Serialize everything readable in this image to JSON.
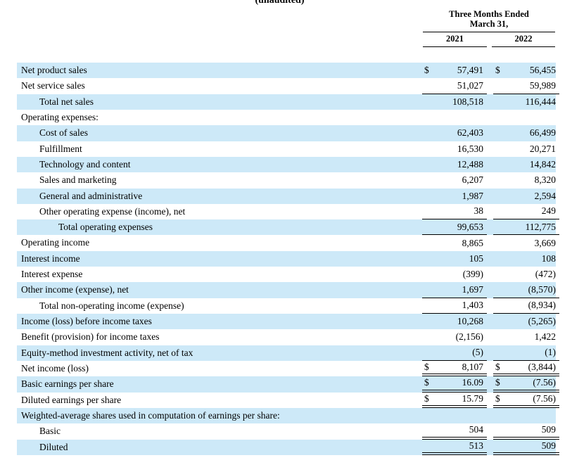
{
  "page": {
    "unaudited_label": "(unaudited)",
    "header": {
      "period_line1": "Three Months Ended",
      "period_line2": "March 31,",
      "col_2021": "2021",
      "col_2022": "2022"
    },
    "colors": {
      "row_highlight": "#cde9f8",
      "rule_line": "#000000",
      "text": "#000000",
      "background": "#ffffff"
    },
    "currency_symbol": "$",
    "rows": [
      {
        "label": "Net product sales",
        "indent": 0,
        "highlight": true,
        "dollar": true,
        "v2021": "57,491",
        "v2022": "56,455",
        "underline": "none"
      },
      {
        "label": "Net service sales",
        "indent": 0,
        "highlight": false,
        "dollar": false,
        "v2021": "51,027",
        "v2022": "59,989",
        "underline": "single"
      },
      {
        "label": "Total net sales",
        "indent": 1,
        "highlight": true,
        "dollar": false,
        "v2021": "108,518",
        "v2022": "116,444",
        "underline": "none"
      },
      {
        "label": "Operating expenses:",
        "indent": 0,
        "highlight": false,
        "dollar": false,
        "v2021": "",
        "v2022": "",
        "underline": "none"
      },
      {
        "label": "Cost of sales",
        "indent": 1,
        "highlight": true,
        "dollar": false,
        "v2021": "62,403",
        "v2022": "66,499",
        "underline": "none"
      },
      {
        "label": "Fulfillment",
        "indent": 1,
        "highlight": false,
        "dollar": false,
        "v2021": "16,530",
        "v2022": "20,271",
        "underline": "none"
      },
      {
        "label": "Technology and content",
        "indent": 1,
        "highlight": true,
        "dollar": false,
        "v2021": "12,488",
        "v2022": "14,842",
        "underline": "none"
      },
      {
        "label": "Sales and marketing",
        "indent": 1,
        "highlight": false,
        "dollar": false,
        "v2021": "6,207",
        "v2022": "8,320",
        "underline": "none"
      },
      {
        "label": "General and administrative",
        "indent": 1,
        "highlight": true,
        "dollar": false,
        "v2021": "1,987",
        "v2022": "2,594",
        "underline": "none"
      },
      {
        "label": "Other operating expense (income), net",
        "indent": 1,
        "highlight": false,
        "dollar": false,
        "v2021": "38",
        "v2022": "249",
        "underline": "single"
      },
      {
        "label": "Total operating expenses",
        "indent": 2,
        "highlight": true,
        "dollar": false,
        "v2021": "99,653",
        "v2022": "112,775",
        "underline": "single"
      },
      {
        "label": "Operating income",
        "indent": 0,
        "highlight": false,
        "dollar": false,
        "v2021": "8,865",
        "v2022": "3,669",
        "underline": "none"
      },
      {
        "label": "Interest income",
        "indent": 0,
        "highlight": true,
        "dollar": false,
        "v2021": "105",
        "v2022": "108",
        "underline": "none"
      },
      {
        "label": "Interest expense",
        "indent": 0,
        "highlight": false,
        "dollar": false,
        "v2021": "(399)",
        "v2022": "(472)",
        "underline": "none"
      },
      {
        "label": "Other income (expense), net",
        "indent": 0,
        "highlight": true,
        "dollar": false,
        "v2021": "1,697",
        "v2022": "(8,570)",
        "underline": "single"
      },
      {
        "label": "Total non-operating income (expense)",
        "indent": 1,
        "highlight": false,
        "dollar": false,
        "v2021": "1,403",
        "v2022": "(8,934)",
        "underline": "single"
      },
      {
        "label": "Income (loss) before income taxes",
        "indent": 0,
        "highlight": true,
        "dollar": false,
        "v2021": "10,268",
        "v2022": "(5,265)",
        "underline": "none"
      },
      {
        "label": "Benefit (provision) for income taxes",
        "indent": 0,
        "highlight": false,
        "dollar": false,
        "v2021": "(2,156)",
        "v2022": "1,422",
        "underline": "none"
      },
      {
        "label": "Equity-method investment activity, net of tax",
        "indent": 0,
        "highlight": true,
        "dollar": false,
        "v2021": "(5)",
        "v2022": "(1)",
        "underline": "single"
      },
      {
        "label": "Net income (loss)",
        "indent": 0,
        "highlight": false,
        "dollar": true,
        "v2021": "8,107",
        "v2022": "(3,844)",
        "underline": "double"
      },
      {
        "label": "Basic earnings per share",
        "indent": 0,
        "highlight": true,
        "dollar": true,
        "v2021": "16.09",
        "v2022": "(7.56)",
        "underline": "double"
      },
      {
        "label": "Diluted earnings per share",
        "indent": 0,
        "highlight": false,
        "dollar": true,
        "v2021": "15.79",
        "v2022": "(7.56)",
        "underline": "double"
      },
      {
        "label": "Weighted-average shares used in computation of earnings per share:",
        "indent": 0,
        "highlight": true,
        "dollar": false,
        "v2021": "",
        "v2022": "",
        "underline": "none"
      },
      {
        "label": "Basic",
        "indent": 1,
        "highlight": false,
        "dollar": false,
        "v2021": "504",
        "v2022": "509",
        "underline": "double"
      },
      {
        "label": "Diluted",
        "indent": 1,
        "highlight": true,
        "dollar": false,
        "v2021": "513",
        "v2022": "509",
        "underline": "double"
      }
    ]
  }
}
